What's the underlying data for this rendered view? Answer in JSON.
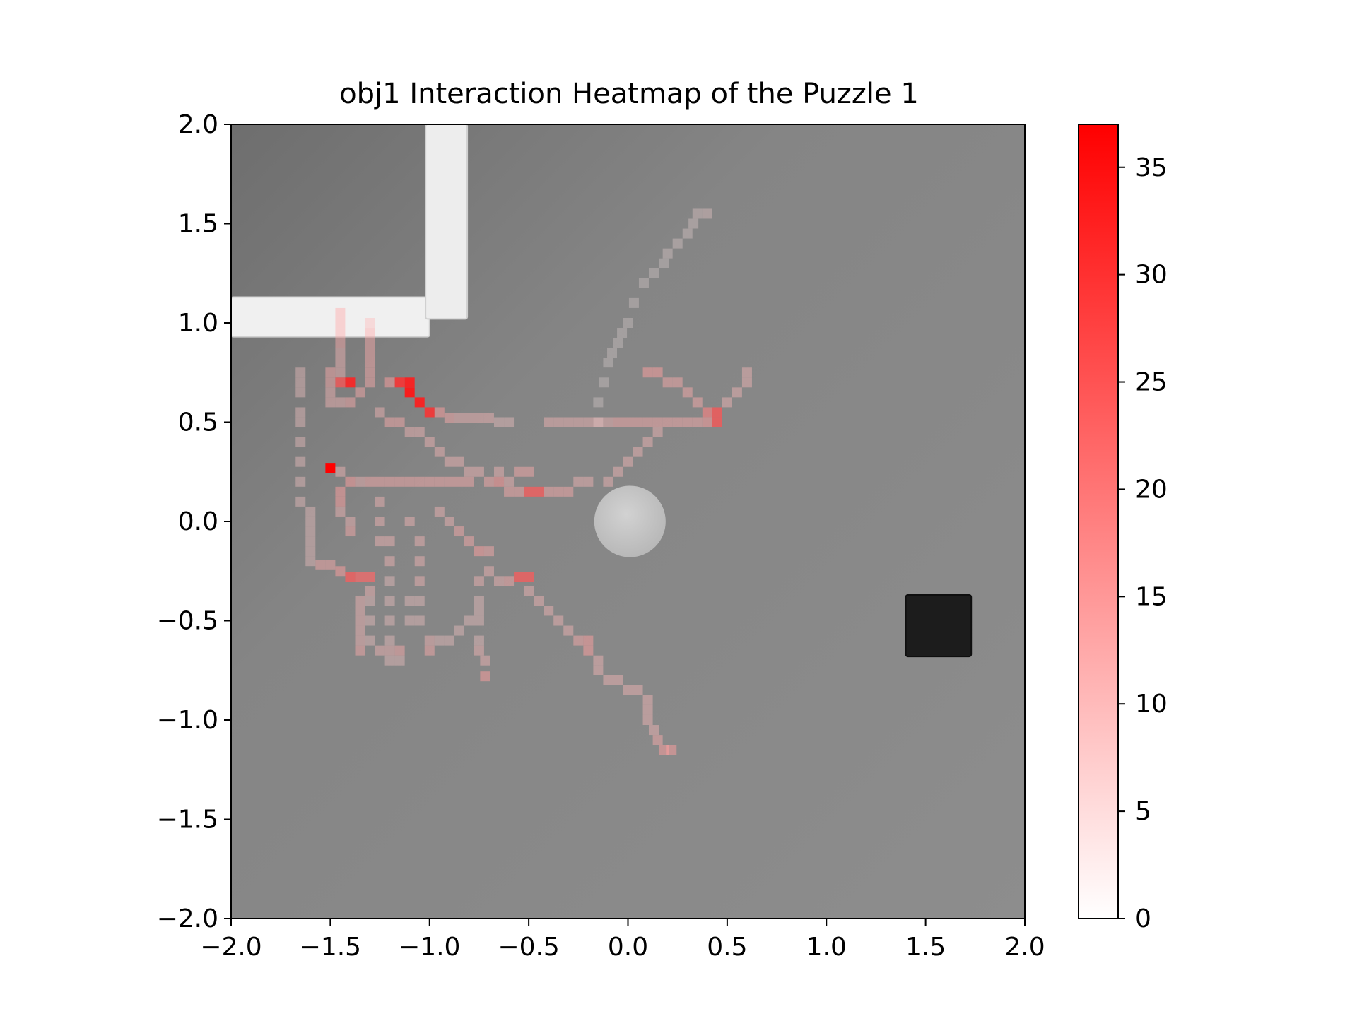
{
  "chart_data": {
    "type": "heatmap",
    "title": "obj1 Interaction Heatmap of the Puzzle 1",
    "xlabel": "",
    "ylabel": "",
    "xlim": [
      -2.0,
      2.0
    ],
    "ylim": [
      -2.0,
      2.0
    ],
    "x_ticks": [
      {
        "value": -2.0,
        "label": "−2.0"
      },
      {
        "value": -1.5,
        "label": "−1.5"
      },
      {
        "value": -1.0,
        "label": "−1.0"
      },
      {
        "value": -0.5,
        "label": "−0.5"
      },
      {
        "value": 0.0,
        "label": "0.0"
      },
      {
        "value": 0.5,
        "label": "0.5"
      },
      {
        "value": 1.0,
        "label": "1.0"
      },
      {
        "value": 1.5,
        "label": "1.5"
      },
      {
        "value": 2.0,
        "label": "2.0"
      }
    ],
    "y_ticks": [
      {
        "value": 2.0,
        "label": "2.0"
      },
      {
        "value": 1.5,
        "label": "1.5"
      },
      {
        "value": 1.0,
        "label": "1.0"
      },
      {
        "value": 0.5,
        "label": "0.5"
      },
      {
        "value": 0.0,
        "label": "0.0"
      },
      {
        "value": -0.5,
        "label": "−0.5"
      },
      {
        "value": -1.0,
        "label": "−1.0"
      },
      {
        "value": -1.5,
        "label": "−1.5"
      },
      {
        "value": -2.0,
        "label": "−2.0"
      }
    ],
    "grid": false,
    "colorbar": {
      "min": 0,
      "max": 37,
      "color_low": "#ffffff",
      "color_high": "#ff0000",
      "ticks": [
        {
          "value": 0,
          "label": "0"
        },
        {
          "value": 5,
          "label": "5"
        },
        {
          "value": 10,
          "label": "10"
        },
        {
          "value": 15,
          "label": "15"
        },
        {
          "value": 20,
          "label": "20"
        },
        {
          "value": 25,
          "label": "25"
        },
        {
          "value": 30,
          "label": "30"
        },
        {
          "value": 35,
          "label": "35"
        }
      ]
    },
    "background": {
      "floor_color": "#858585",
      "objects": [
        {
          "name": "wall-horizontal",
          "shape": "bar",
          "x0": -2.0,
          "x1": -1.0,
          "y0": 0.93,
          "y1": 1.13,
          "color": "#f0f0f0"
        },
        {
          "name": "wall-vertical",
          "shape": "bar",
          "x0": -1.02,
          "x1": -0.81,
          "y0": 1.02,
          "y1": 2.0,
          "color": "#ededed"
        },
        {
          "name": "disc",
          "shape": "circle",
          "cx": 0.01,
          "cy": 0.0,
          "r": 0.18,
          "color": "#c8c8c8"
        },
        {
          "name": "cube",
          "shape": "box",
          "x0": 1.4,
          "x1": 1.73,
          "y0": -0.68,
          "y1": -0.37,
          "color": "#1c1c1c"
        }
      ]
    },
    "cells": [
      [
        0.35,
        1.55,
        5
      ],
      [
        0.4,
        1.55,
        6
      ],
      [
        0.33,
        1.5,
        4
      ],
      [
        0.3,
        1.45,
        4
      ],
      [
        0.25,
        1.4,
        4
      ],
      [
        0.2,
        1.35,
        4
      ],
      [
        0.18,
        1.3,
        3
      ],
      [
        0.13,
        1.25,
        3
      ],
      [
        0.08,
        1.2,
        3
      ],
      [
        0.03,
        1.1,
        3
      ],
      [
        0.0,
        1.0,
        3
      ],
      [
        -0.03,
        0.95,
        3
      ],
      [
        -0.05,
        0.9,
        3
      ],
      [
        -0.08,
        0.85,
        3
      ],
      [
        -0.1,
        0.8,
        3
      ],
      [
        -0.12,
        0.7,
        3
      ],
      [
        -0.15,
        0.6,
        3
      ],
      [
        -0.15,
        0.5,
        3
      ],
      [
        -1.45,
        1.05,
        12
      ],
      [
        -1.45,
        1.0,
        12
      ],
      [
        -1.45,
        0.95,
        12
      ],
      [
        -1.45,
        0.9,
        12
      ],
      [
        -1.45,
        0.85,
        10
      ],
      [
        -1.45,
        0.8,
        10
      ],
      [
        -1.45,
        0.75,
        10
      ],
      [
        -1.3,
        1.0,
        10
      ],
      [
        -1.3,
        0.95,
        12
      ],
      [
        -1.3,
        0.9,
        12
      ],
      [
        -1.3,
        0.85,
        12
      ],
      [
        -1.3,
        0.8,
        12
      ],
      [
        -1.3,
        0.75,
        12
      ],
      [
        -1.3,
        0.7,
        12
      ],
      [
        -1.65,
        0.75,
        8
      ],
      [
        -1.65,
        0.7,
        8
      ],
      [
        -1.65,
        0.65,
        8
      ],
      [
        -1.65,
        0.55,
        8
      ],
      [
        -1.65,
        0.5,
        8
      ],
      [
        -1.65,
        0.4,
        8
      ],
      [
        -1.65,
        0.3,
        8
      ],
      [
        -1.65,
        0.2,
        8
      ],
      [
        -1.65,
        0.1,
        8
      ],
      [
        -1.5,
        0.75,
        12
      ],
      [
        -1.5,
        0.7,
        12
      ],
      [
        -1.45,
        0.7,
        25
      ],
      [
        -1.4,
        0.7,
        32
      ],
      [
        -1.5,
        0.65,
        10
      ],
      [
        -1.5,
        0.6,
        10
      ],
      [
        -1.45,
        0.6,
        10
      ],
      [
        -1.4,
        0.6,
        12
      ],
      [
        -1.35,
        0.65,
        12
      ],
      [
        -1.2,
        0.7,
        14
      ],
      [
        -1.15,
        0.7,
        30
      ],
      [
        -1.1,
        0.7,
        33
      ],
      [
        -1.1,
        0.65,
        34
      ],
      [
        -1.05,
        0.6,
        33
      ],
      [
        -1.0,
        0.55,
        30
      ],
      [
        -0.95,
        0.55,
        14
      ],
      [
        -0.9,
        0.52,
        12
      ],
      [
        -0.85,
        0.52,
        10
      ],
      [
        -0.8,
        0.52,
        10
      ],
      [
        -0.75,
        0.52,
        10
      ],
      [
        -0.7,
        0.52,
        10
      ],
      [
        -0.65,
        0.5,
        8
      ],
      [
        -0.6,
        0.5,
        8
      ],
      [
        -0.4,
        0.5,
        10
      ],
      [
        -0.35,
        0.5,
        10
      ],
      [
        -0.3,
        0.5,
        10
      ],
      [
        -0.25,
        0.5,
        10
      ],
      [
        -0.2,
        0.5,
        10
      ],
      [
        -0.15,
        0.5,
        10
      ],
      [
        -0.1,
        0.5,
        10
      ],
      [
        -0.05,
        0.5,
        12
      ],
      [
        0.0,
        0.5,
        12
      ],
      [
        0.05,
        0.5,
        12
      ],
      [
        0.1,
        0.5,
        12
      ],
      [
        0.15,
        0.5,
        12
      ],
      [
        0.2,
        0.5,
        12
      ],
      [
        0.25,
        0.5,
        12
      ],
      [
        0.3,
        0.5,
        12
      ],
      [
        0.35,
        0.5,
        12
      ],
      [
        0.1,
        0.75,
        14
      ],
      [
        0.15,
        0.75,
        14
      ],
      [
        0.2,
        0.7,
        12
      ],
      [
        0.25,
        0.7,
        12
      ],
      [
        0.3,
        0.65,
        12
      ],
      [
        0.35,
        0.6,
        12
      ],
      [
        0.4,
        0.55,
        18
      ],
      [
        0.45,
        0.55,
        25
      ],
      [
        0.45,
        0.5,
        25
      ],
      [
        0.4,
        0.5,
        14
      ],
      [
        0.5,
        0.6,
        10
      ],
      [
        0.55,
        0.65,
        10
      ],
      [
        0.6,
        0.7,
        10
      ],
      [
        0.6,
        0.75,
        10
      ],
      [
        0.15,
        0.45,
        10
      ],
      [
        0.1,
        0.4,
        10
      ],
      [
        0.05,
        0.35,
        10
      ],
      [
        0.0,
        0.3,
        10
      ],
      [
        -0.05,
        0.25,
        10
      ],
      [
        -0.1,
        0.2,
        10
      ],
      [
        -0.2,
        0.2,
        10
      ],
      [
        -0.25,
        0.2,
        10
      ],
      [
        -1.25,
        0.55,
        10
      ],
      [
        -1.2,
        0.5,
        12
      ],
      [
        -1.15,
        0.5,
        12
      ],
      [
        -1.1,
        0.45,
        10
      ],
      [
        -1.05,
        0.45,
        10
      ],
      [
        -1.0,
        0.4,
        10
      ],
      [
        -0.95,
        0.35,
        10
      ],
      [
        -0.9,
        0.3,
        10
      ],
      [
        -0.85,
        0.3,
        10
      ],
      [
        -0.8,
        0.25,
        10
      ],
      [
        -0.75,
        0.25,
        10
      ],
      [
        -0.7,
        0.2,
        12
      ],
      [
        -0.65,
        0.2,
        15
      ],
      [
        -0.6,
        0.15,
        12
      ],
      [
        -0.55,
        0.15,
        12
      ],
      [
        -0.5,
        0.15,
        24
      ],
      [
        -0.45,
        0.15,
        24
      ],
      [
        -0.4,
        0.15,
        12
      ],
      [
        -0.35,
        0.15,
        12
      ],
      [
        -0.3,
        0.15,
        12
      ],
      [
        -1.5,
        0.27,
        37
      ],
      [
        -1.45,
        0.25,
        10
      ],
      [
        -1.4,
        0.2,
        14
      ],
      [
        -1.35,
        0.2,
        10
      ],
      [
        -1.3,
        0.2,
        12
      ],
      [
        -1.25,
        0.2,
        12
      ],
      [
        -1.2,
        0.2,
        12
      ],
      [
        -1.15,
        0.2,
        12
      ],
      [
        -1.1,
        0.2,
        12
      ],
      [
        -1.05,
        0.2,
        12
      ],
      [
        -1.0,
        0.2,
        12
      ],
      [
        -0.95,
        0.2,
        12
      ],
      [
        -0.9,
        0.2,
        12
      ],
      [
        -0.85,
        0.2,
        12
      ],
      [
        -0.8,
        0.2,
        12
      ],
      [
        -1.45,
        0.15,
        14
      ],
      [
        -1.45,
        0.1,
        14
      ],
      [
        -1.45,
        0.05,
        10
      ],
      [
        -1.4,
        0.0,
        10
      ],
      [
        -1.4,
        -0.05,
        12
      ],
      [
        -1.6,
        0.05,
        8
      ],
      [
        -1.6,
        0.0,
        8
      ],
      [
        -1.6,
        -0.05,
        8
      ],
      [
        -1.6,
        -0.1,
        8
      ],
      [
        -1.6,
        -0.15,
        8
      ],
      [
        -1.6,
        -0.2,
        8
      ],
      [
        -1.55,
        -0.22,
        12
      ],
      [
        -1.5,
        -0.22,
        12
      ],
      [
        -1.45,
        -0.25,
        14
      ],
      [
        -1.4,
        -0.28,
        24
      ],
      [
        -1.35,
        -0.28,
        22
      ],
      [
        -1.3,
        -0.28,
        22
      ],
      [
        -1.3,
        -0.35,
        10
      ],
      [
        -1.35,
        -0.4,
        10
      ],
      [
        -1.35,
        -0.45,
        10
      ],
      [
        -1.35,
        -0.5,
        10
      ],
      [
        -1.35,
        -0.55,
        10
      ],
      [
        -1.35,
        -0.6,
        10
      ],
      [
        -1.35,
        -0.65,
        12
      ],
      [
        -1.3,
        -0.4,
        8
      ],
      [
        -1.3,
        -0.5,
        8
      ],
      [
        -1.3,
        -0.6,
        8
      ],
      [
        -1.25,
        0.1,
        10
      ],
      [
        -1.25,
        0.0,
        10
      ],
      [
        -1.25,
        -0.1,
        10
      ],
      [
        -1.2,
        -0.1,
        10
      ],
      [
        -1.2,
        -0.2,
        10
      ],
      [
        -1.2,
        -0.3,
        8
      ],
      [
        -1.2,
        -0.4,
        8
      ],
      [
        -1.2,
        -0.5,
        8
      ],
      [
        -1.2,
        -0.6,
        8
      ],
      [
        -1.25,
        -0.65,
        10
      ],
      [
        -1.2,
        -0.65,
        10
      ],
      [
        -1.2,
        -0.7,
        8
      ],
      [
        -1.15,
        -0.7,
        8
      ],
      [
        -1.15,
        -0.65,
        12
      ],
      [
        -1.1,
        -0.5,
        8
      ],
      [
        -1.1,
        -0.4,
        8
      ],
      [
        -1.1,
        0.0,
        10
      ],
      [
        -1.05,
        -0.1,
        10
      ],
      [
        -1.05,
        -0.2,
        10
      ],
      [
        -1.05,
        -0.3,
        10
      ],
      [
        -1.05,
        -0.4,
        8
      ],
      [
        -1.05,
        -0.5,
        8
      ],
      [
        -1.0,
        -0.6,
        10
      ],
      [
        -1.0,
        -0.65,
        12
      ],
      [
        -0.95,
        -0.6,
        8
      ],
      [
        -0.9,
        -0.6,
        8
      ],
      [
        -0.85,
        -0.55,
        8
      ],
      [
        -0.8,
        -0.5,
        8
      ],
      [
        -0.75,
        -0.45,
        8
      ],
      [
        -0.95,
        0.05,
        10
      ],
      [
        -0.9,
        0.0,
        10
      ],
      [
        -0.85,
        -0.05,
        12
      ],
      [
        -0.8,
        -0.1,
        12
      ],
      [
        -0.75,
        -0.15,
        14
      ],
      [
        -0.7,
        -0.15,
        12
      ],
      [
        -0.7,
        -0.25,
        10
      ],
      [
        -0.65,
        -0.3,
        10
      ],
      [
        -0.6,
        -0.3,
        12
      ],
      [
        -0.55,
        -0.28,
        24
      ],
      [
        -0.5,
        -0.28,
        24
      ],
      [
        -0.5,
        -0.35,
        10
      ],
      [
        -0.45,
        -0.4,
        10
      ],
      [
        -0.4,
        -0.45,
        10
      ],
      [
        -0.35,
        -0.5,
        10
      ],
      [
        -0.3,
        -0.55,
        10
      ],
      [
        -0.25,
        -0.6,
        12
      ],
      [
        -0.2,
        -0.6,
        14
      ],
      [
        -0.2,
        -0.65,
        14
      ],
      [
        -0.15,
        -0.7,
        10
      ],
      [
        -0.15,
        -0.75,
        10
      ],
      [
        -0.1,
        -0.8,
        10
      ],
      [
        -0.05,
        -0.8,
        10
      ],
      [
        0.0,
        -0.85,
        10
      ],
      [
        0.05,
        -0.85,
        10
      ],
      [
        0.1,
        -0.9,
        10
      ],
      [
        0.1,
        -0.95,
        10
      ],
      [
        0.1,
        -1.0,
        10
      ],
      [
        0.13,
        -1.05,
        10
      ],
      [
        0.15,
        -1.1,
        12
      ],
      [
        0.18,
        -1.15,
        14
      ],
      [
        0.22,
        -1.15,
        14
      ],
      [
        -0.75,
        -0.3,
        10
      ],
      [
        -0.75,
        -0.4,
        8
      ],
      [
        -0.75,
        -0.5,
        8
      ],
      [
        -0.75,
        -0.6,
        8
      ],
      [
        -0.75,
        -0.65,
        10
      ],
      [
        -0.72,
        -0.7,
        10
      ],
      [
        -0.72,
        -0.78,
        14
      ],
      [
        -0.65,
        0.25,
        10
      ],
      [
        -0.6,
        0.2,
        10
      ],
      [
        -0.55,
        0.25,
        12
      ],
      [
        -0.5,
        0.25,
        12
      ]
    ]
  }
}
